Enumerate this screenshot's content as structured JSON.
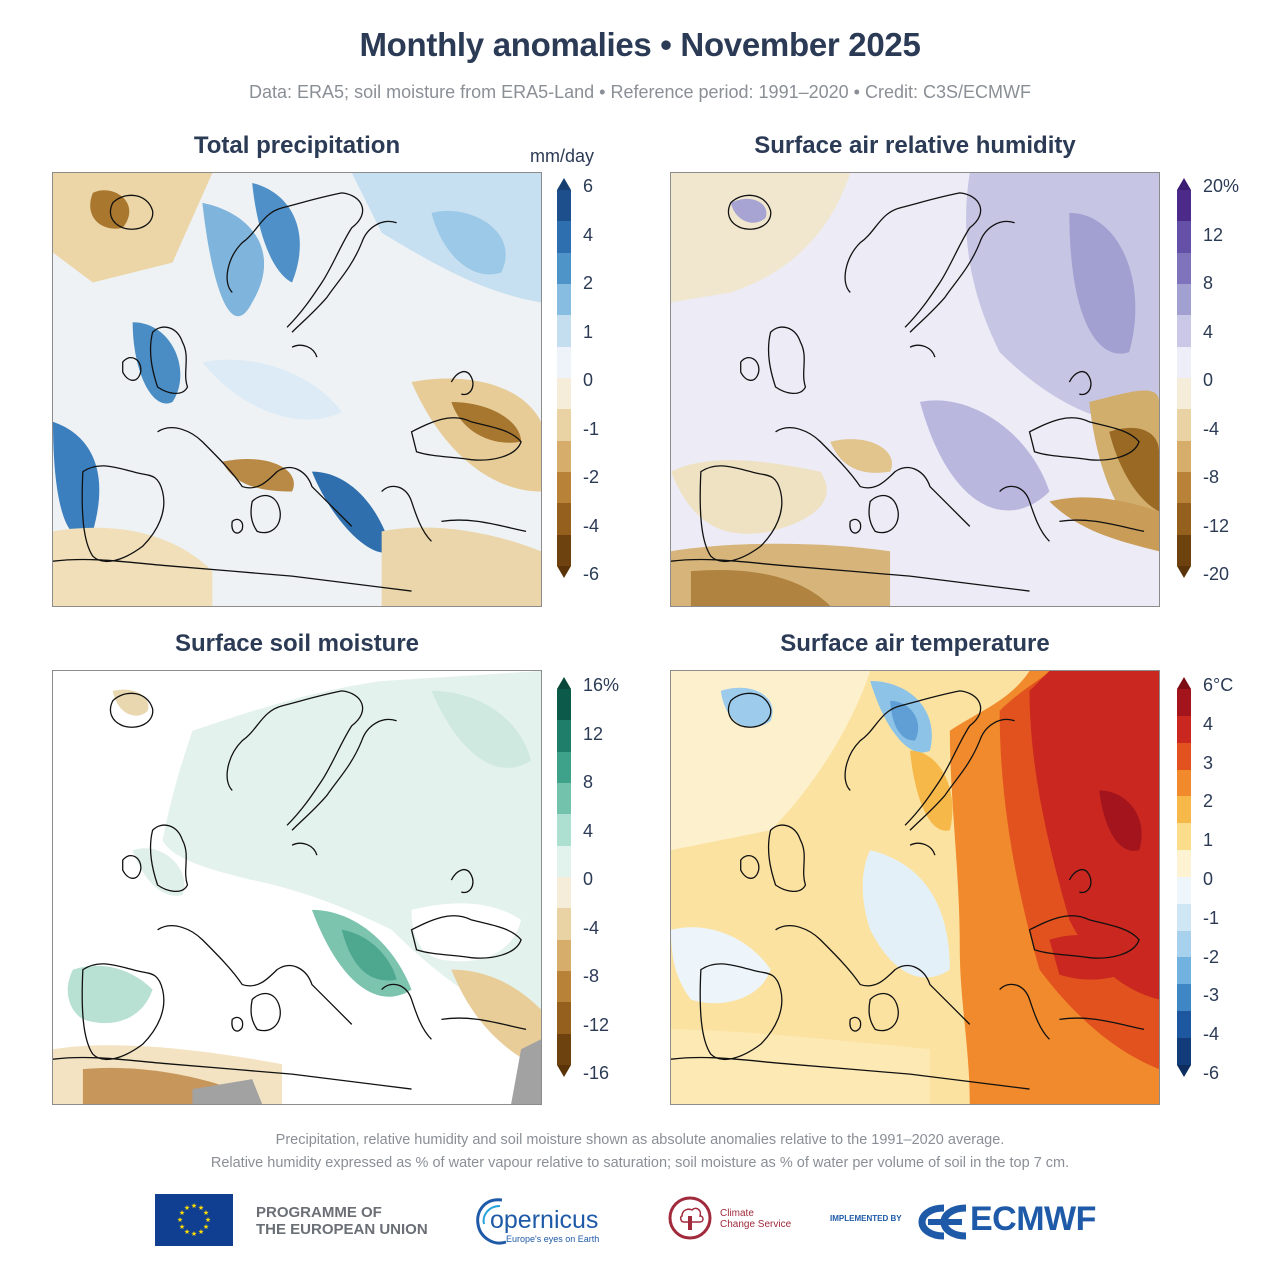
{
  "header": {
    "title": "Monthly anomalies • November 2025",
    "subtitle": "Data: ERA5; soil moisture from ERA5-Land • Reference period: 1991–2020 • Credit: C3S/ECMWF"
  },
  "panels": [
    {
      "title": "Total precipitation",
      "unit": "mm/day",
      "ticks": [
        "6",
        "4",
        "2",
        "1",
        "0",
        "-1",
        "-2",
        "-4",
        "-6"
      ],
      "colors": [
        "#1c4f8c",
        "#2e6fb0",
        "#4f94c9",
        "#86bde0",
        "#c4def0",
        "#edf3f8",
        "#f5ecd9",
        "#e9d2a4",
        "#d6ad6a",
        "#b88238",
        "#955f1e",
        "#6e420f"
      ],
      "arrow_top": "#163e70",
      "arrow_bottom": "#5a3408"
    },
    {
      "title": "Surface air relative humidity",
      "unit": "",
      "ticks": [
        "20%",
        "12",
        "8",
        "4",
        "0",
        "-4",
        "-8",
        "-12",
        "-20"
      ],
      "colors": [
        "#4b2a8a",
        "#6450a6",
        "#7f74bb",
        "#a29fd1",
        "#c9c8e6",
        "#eeeef8",
        "#f5ecd9",
        "#e9d2a4",
        "#d6ad6a",
        "#b88238",
        "#955f1e",
        "#6e420f"
      ],
      "arrow_top": "#3a1c73",
      "arrow_bottom": "#5a3408"
    },
    {
      "title": "Surface soil moisture",
      "unit": "",
      "ticks": [
        "16%",
        "12",
        "8",
        "4",
        "0",
        "-4",
        "-8",
        "-12",
        "-16"
      ],
      "colors": [
        "#0c5a4a",
        "#1f7e6a",
        "#3ea18a",
        "#73c2ab",
        "#ade0d0",
        "#e2f3ee",
        "#f5ecd9",
        "#e9d2a4",
        "#d6ad6a",
        "#b88238",
        "#955f1e",
        "#6e420f"
      ],
      "arrow_top": "#08473a",
      "arrow_bottom": "#5a3408"
    },
    {
      "title": "Surface air temperature",
      "unit": "",
      "ticks": [
        "6°C",
        "4",
        "3",
        "2",
        "1",
        "0",
        "-1",
        "-2",
        "-3",
        "-4",
        "-6"
      ],
      "colors": [
        "#a3141c",
        "#c9271f",
        "#e2521f",
        "#f08a2c",
        "#f7b84a",
        "#fbdc8a",
        "#fdf3d2",
        "#eef6fb",
        "#cfe6f4",
        "#a7d1ec",
        "#72b2de",
        "#3f86c4",
        "#1d57a0",
        "#123b7a"
      ],
      "arrow_top": "#7d0d14",
      "arrow_bottom": "#0e2c5e"
    }
  ],
  "footnotes": [
    "Precipitation, relative humidity and soil moisture shown as absolute anomalies relative to the 1991–2020 average.",
    "Relative humidity expressed as % of water vapour relative to saturation; soil moisture as % of water per volume of soil in the top 7 cm."
  ],
  "logos": {
    "eu_line1": "PROGRAMME OF",
    "eu_line2": "THE EUROPEAN UNION",
    "copernicus": "opernicus",
    "copernicus_tagline": "Europe's eyes on Earth",
    "c3s_line1": "Climate",
    "c3s_line2": "Change Service",
    "implemented_by": "IMPLEMENTED BY",
    "ecmwf": "ECMWF"
  }
}
